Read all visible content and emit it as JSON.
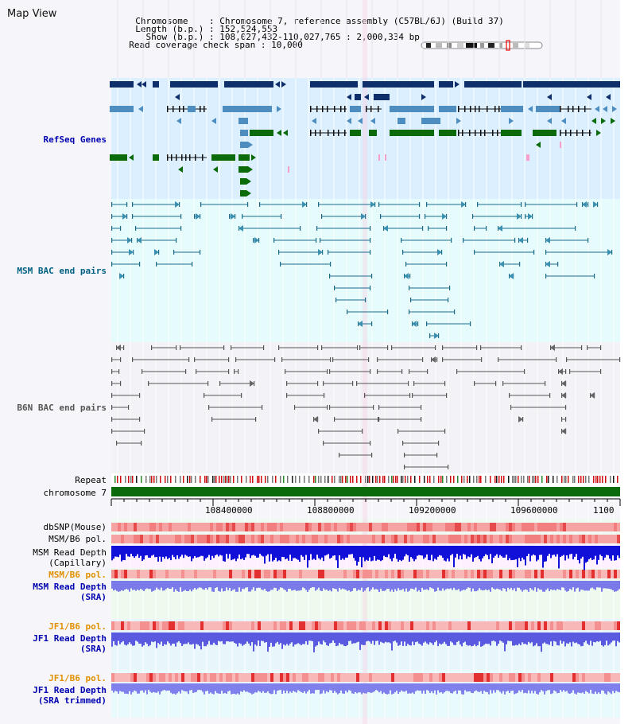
{
  "title": "Map View",
  "info": {
    "chromosome_key": "Chromosome",
    "chromosome_val": "Chromosome 7, reference assembly (C57BL/6J) (Build 37)",
    "length_key": "Length (b.p.)",
    "length_val": "152,524,553",
    "show_key": "Show (b.p.)",
    "show_val": "108,027,432-110,027,765 : 2,000,334 bp",
    "coverage_key": "Read coverage check span",
    "coverage_val": "10,000"
  },
  "tracks": {
    "refseq": "RefSeq Genes",
    "msm_bac": "MSM BAC end pairs",
    "b6n_bac": "B6N BAC end pairs",
    "repeat": "Repeat",
    "chromosome": "chromosome 7",
    "dbsnp": "dbSNP(Mouse)",
    "msm_b6_pol_1": "MSM/B6 pol.",
    "msm_read_depth_cap_1": "MSM Read Depth",
    "msm_read_depth_cap_2": "(Capillary)",
    "msm_b6_pol_2": "MSM/B6 pol.",
    "msm_read_depth_sra_1": "MSM Read Depth",
    "msm_read_depth_sra_2": "(SRA)",
    "jf1_b6_pol_1": "JF1/B6 pol.",
    "jf1_read_depth_sra_1": "JF1 Read Depth",
    "jf1_read_depth_sra_2": "(SRA)",
    "jf1_b6_pol_2": "JF1/B6 pol.",
    "jf1_read_depth_trim_1": "JF1 Read Depth",
    "jf1_read_depth_trim_2": "(SRA trimmed)"
  },
  "axis": {
    "ticks": [
      "108400000",
      "108800000",
      "109200000",
      "109600000",
      "1100"
    ]
  },
  "colors": {
    "refseq_bg": "#dcefff",
    "msm_bg": "#e6fcfc",
    "b6n_bg": "#f6f6fa",
    "navy": "#0f2f6a",
    "steel": "#4d8dbf",
    "green": "#0b6b0b",
    "teal_label": "#006080",
    "orange_label": "#e09000",
    "blue_label": "#0000b0"
  }
}
